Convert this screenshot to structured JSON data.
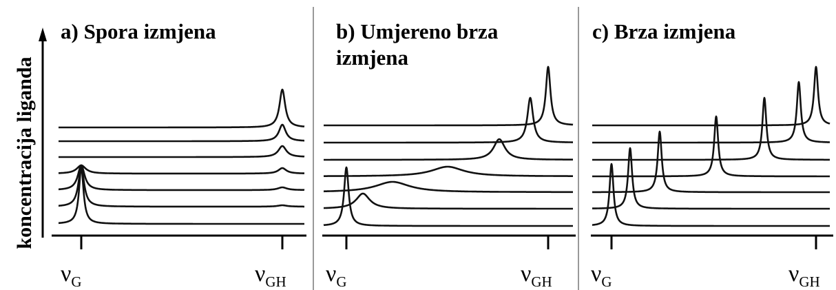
{
  "y_axis_label": "koncentracija liganda",
  "panels": [
    {
      "title_lines": [
        "a) Spora izmjena"
      ],
      "labels": [
        {
          "symbol": "ν",
          "sub": "G"
        },
        {
          "symbol": "ν",
          "sub": "GH"
        }
      ]
    },
    {
      "title_lines": [
        "b) Umjereno brza",
        "izmjena"
      ],
      "labels": [
        {
          "symbol": "ν",
          "sub": "G"
        },
        {
          "symbol": "ν",
          "sub": "GH"
        }
      ]
    },
    {
      "title_lines": [
        "c) Brza izmjena"
      ],
      "labels": [
        {
          "symbol": "ν",
          "sub": "G"
        },
        {
          "symbol": "ν",
          "sub": "GH"
        }
      ]
    }
  ]
}
